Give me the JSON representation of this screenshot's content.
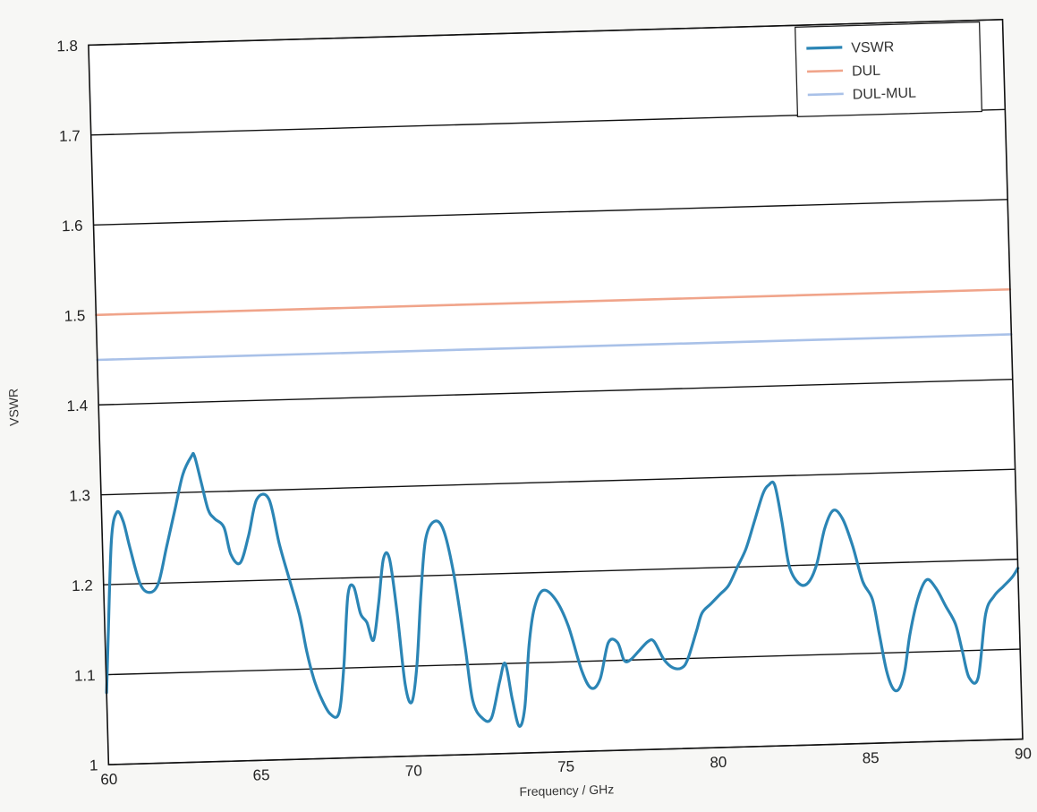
{
  "chart_data": {
    "type": "line",
    "title": "",
    "xlabel": "Frequency / GHz",
    "ylabel": "VSWR",
    "xlim": [
      60,
      90
    ],
    "ylim": [
      1.0,
      1.8
    ],
    "xticks": [
      60,
      65,
      70,
      75,
      80,
      85,
      90
    ],
    "yticks": [
      1.0,
      1.1,
      1.2,
      1.3,
      1.4,
      1.5,
      1.6,
      1.7,
      1.8
    ],
    "xtick_labels": [
      "60",
      "65",
      "70",
      "75",
      "80",
      "85",
      "90"
    ],
    "ytick_labels": [
      "1",
      "1.1",
      "1.2",
      "1.3",
      "1.4",
      "1.5",
      "1.6",
      "1.7",
      "1.8"
    ],
    "grid": "horizontal",
    "legend_position": "top-right",
    "series": [
      {
        "name": "VSWR",
        "color": "#2b85b5",
        "x": [
          60,
          60.1,
          60.3,
          60.5,
          60.7,
          60.9,
          61.2,
          61.5,
          61.8,
          62.1,
          62.4,
          62.7,
          63.0,
          63.1,
          63.3,
          63.5,
          63.7,
          64.0,
          64.2,
          64.5,
          64.8,
          65.1,
          65.5,
          65.8,
          66.1,
          66.4,
          66.6,
          66.8,
          67.0,
          67.3,
          67.6,
          67.8,
          68.0,
          68.2,
          68.4,
          68.6,
          68.8,
          69.0,
          69.2,
          69.4,
          69.6,
          69.8,
          70.0,
          70.2,
          70.4,
          70.6,
          70.9,
          71.2,
          71.5,
          71.8,
          72.0,
          72.3,
          72.6,
          72.9,
          73.1,
          73.3,
          73.5,
          73.7,
          73.9,
          74.1,
          74.4,
          74.8,
          75.2,
          75.6,
          75.9,
          76.2,
          76.5,
          76.8,
          77.0,
          77.2,
          77.5,
          77.8,
          78.0,
          78.3,
          78.6,
          78.9,
          79.1,
          79.4,
          79.6,
          79.9,
          80.2,
          80.5,
          80.8,
          81.1,
          81.4,
          81.7,
          81.9,
          82.1,
          82.3,
          82.5,
          82.8,
          83.1,
          83.4,
          83.7,
          84.0,
          84.3,
          84.6,
          84.9,
          85.2,
          85.4,
          85.6,
          85.8,
          86.0,
          86.2,
          86.4,
          86.7,
          87.0,
          87.3,
          87.6,
          87.9,
          88.1,
          88.3,
          88.6,
          88.9,
          89.2,
          89.5,
          89.8,
          90.0
        ],
        "y": [
          1.08,
          1.14,
          1.25,
          1.28,
          1.27,
          1.24,
          1.2,
          1.19,
          1.2,
          1.24,
          1.28,
          1.32,
          1.34,
          1.34,
          1.31,
          1.28,
          1.27,
          1.26,
          1.23,
          1.22,
          1.25,
          1.29,
          1.29,
          1.24,
          1.2,
          1.16,
          1.12,
          1.09,
          1.07,
          1.05,
          1.05,
          1.1,
          1.18,
          1.19,
          1.16,
          1.15,
          1.13,
          1.17,
          1.22,
          1.22,
          1.16,
          1.08,
          1.06,
          1.1,
          1.18,
          1.24,
          1.26,
          1.25,
          1.2,
          1.12,
          1.06,
          1.04,
          1.04,
          1.08,
          1.1,
          1.06,
          1.03,
          1.05,
          1.12,
          1.16,
          1.18,
          1.17,
          1.14,
          1.09,
          1.07,
          1.08,
          1.12,
          1.12,
          1.1,
          1.1,
          1.11,
          1.12,
          1.12,
          1.1,
          1.09,
          1.09,
          1.1,
          1.13,
          1.15,
          1.16,
          1.17,
          1.18,
          1.2,
          1.22,
          1.25,
          1.28,
          1.29,
          1.29,
          1.25,
          1.2,
          1.18,
          1.18,
          1.2,
          1.24,
          1.26,
          1.25,
          1.22,
          1.18,
          1.16,
          1.12,
          1.08,
          1.06,
          1.06,
          1.08,
          1.12,
          1.16,
          1.18,
          1.17,
          1.15,
          1.13,
          1.1,
          1.07,
          1.07,
          1.14,
          1.16,
          1.17,
          1.18,
          1.19
        ]
      },
      {
        "name": "DUL",
        "color": "#f0a48a",
        "x": [
          60,
          90
        ],
        "y": [
          1.5,
          1.5
        ]
      },
      {
        "name": "DUL-MUL",
        "color": "#a9c1e8",
        "x": [
          60,
          90
        ],
        "y": [
          1.45,
          1.45
        ]
      }
    ]
  }
}
